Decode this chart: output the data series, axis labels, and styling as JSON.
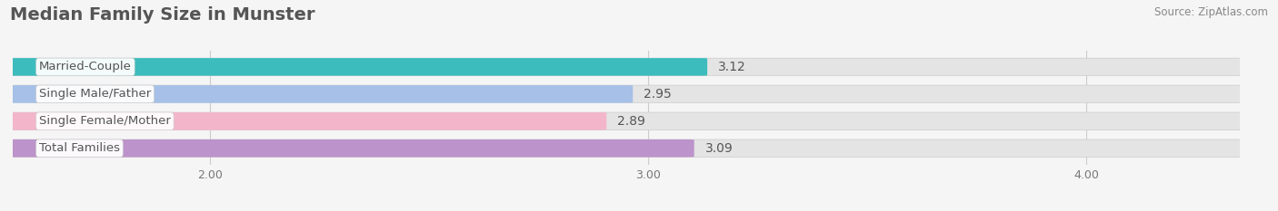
{
  "title": "Median Family Size in Munster",
  "source": "Source: ZipAtlas.com",
  "categories": [
    "Married-Couple",
    "Single Male/Father",
    "Single Female/Mother",
    "Total Families"
  ],
  "values": [
    3.12,
    2.95,
    2.89,
    3.09
  ],
  "bar_colors": [
    "#2ab8b8",
    "#a0bce8",
    "#f5b0c8",
    "#b88ac8"
  ],
  "xlim": [
    1.55,
    4.35
  ],
  "xticks": [
    2.0,
    3.0,
    4.0
  ],
  "xtick_labels": [
    "2.00",
    "3.00",
    "4.00"
  ],
  "background_color": "#f5f5f5",
  "bar_bg_color": "#e4e4e4",
  "title_fontsize": 14,
  "bar_height": 0.62,
  "value_fontsize": 10,
  "label_fontsize": 9.5,
  "label_color": "#555555",
  "value_color": "#555555"
}
